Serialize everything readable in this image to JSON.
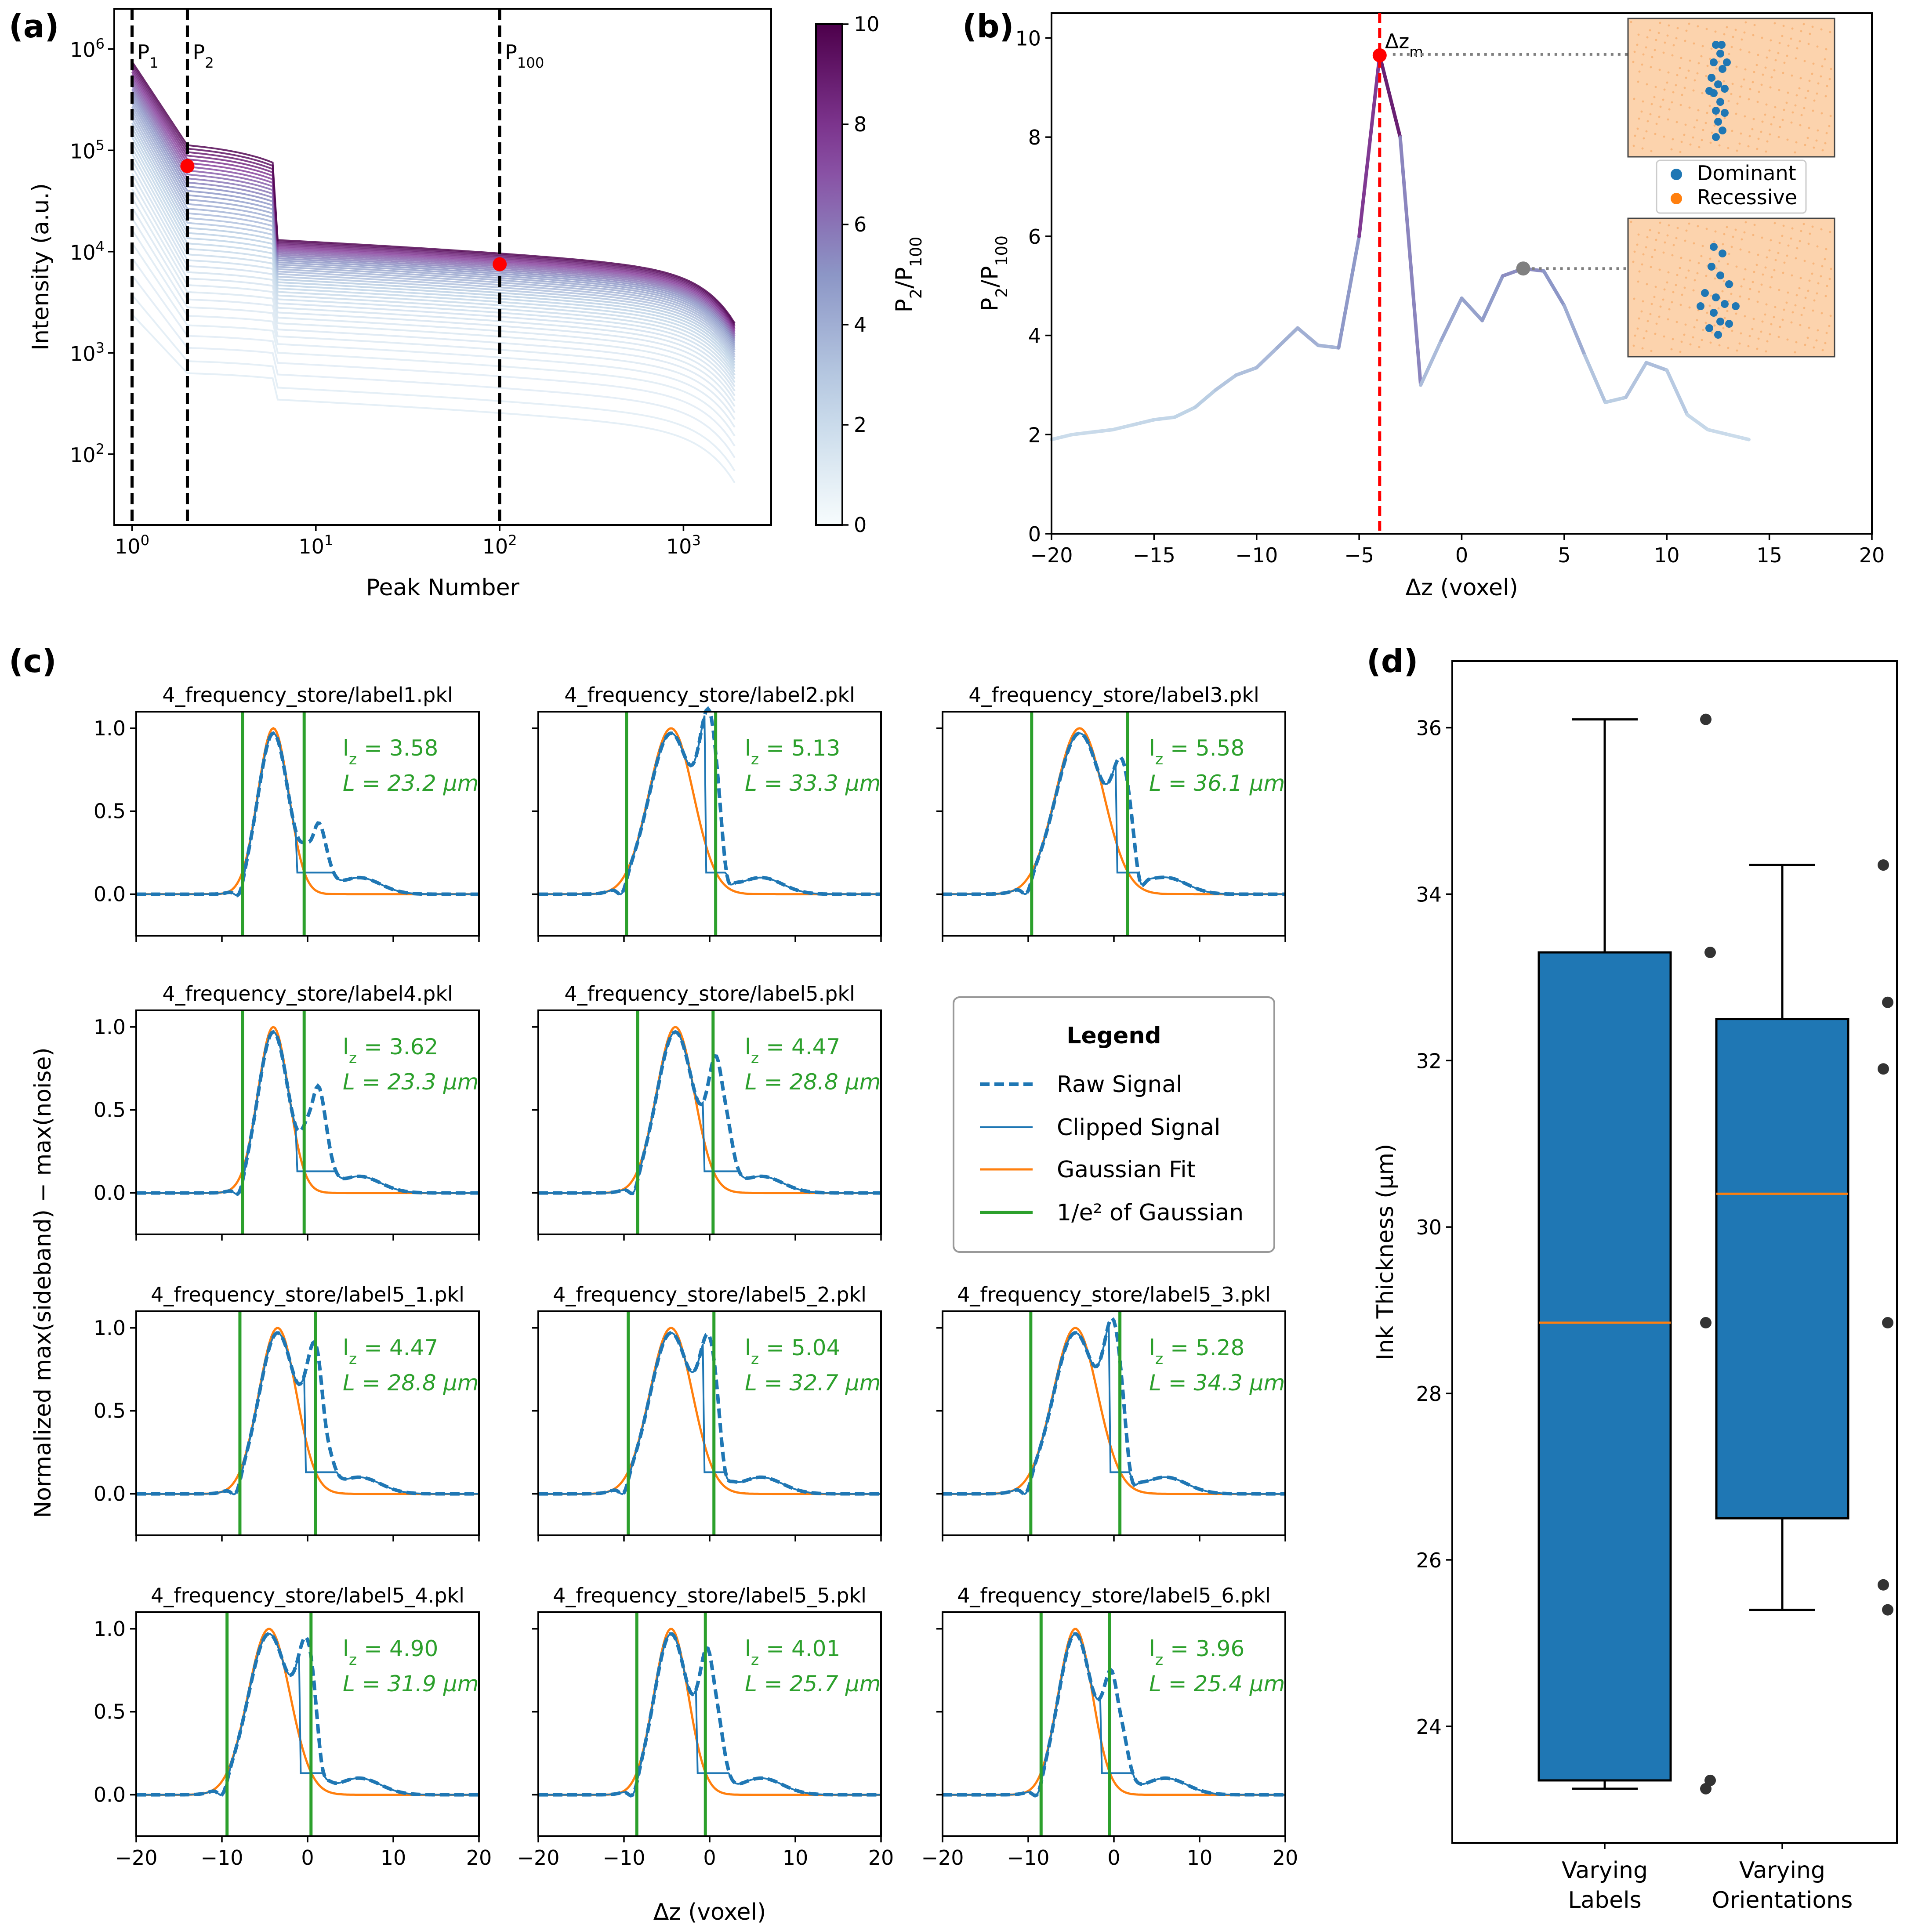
{
  "colors": {
    "blue": "#1f77b4",
    "orange": "#ff7f0e",
    "green": "#2ca02c",
    "red": "#ff0000",
    "dark_purple": "#4d004b",
    "light_blue": "#e0ecf4",
    "grey": "#808080"
  },
  "chart_data": [
    {
      "id": "a",
      "type": "line",
      "panel_label": "(a)",
      "xlabel": "Peak Number",
      "ylabel": "Intensity (a.u.)",
      "xscale": "log",
      "yscale": "log",
      "xlim": [
        0.8,
        3000
      ],
      "ylim": [
        20,
        2500000
      ],
      "xticks": [
        1,
        10,
        100,
        1000
      ],
      "xtick_labels": [
        "10^0",
        "10^1",
        "10^2",
        "10^3"
      ],
      "yticks": [
        100,
        1000,
        10000,
        100000,
        1000000
      ],
      "ytick_labels": [
        "10^2",
        "10^3",
        "10^4",
        "10^5",
        "10^6"
      ],
      "vlines": [
        {
          "x": 1,
          "label": "P_1"
        },
        {
          "x": 2,
          "label": "P_2"
        },
        {
          "x": 100,
          "label": "P_100"
        }
      ],
      "highlight_points": [
        [
          2,
          70000
        ],
        [
          100,
          7500
        ]
      ],
      "colorbar": {
        "label": "P_2/P_100",
        "range": [
          0,
          10
        ],
        "ticks": [
          0,
          2,
          4,
          6,
          8,
          10
        ],
        "tick_labels": [
          "0",
          "2",
          "4",
          "6",
          "8",
          "10"
        ],
        "colormap": "BuPu"
      },
      "series_count": 40,
      "series_ratio_range": [
        1.0,
        9.7
      ]
    },
    {
      "id": "b",
      "type": "line",
      "panel_label": "(b)",
      "xlabel": "Δz (voxel)",
      "ylabel": "P_2/P_100",
      "xlim": [
        -20,
        20
      ],
      "ylim": [
        0,
        10.5
      ],
      "xticks": [
        -20,
        -15,
        -10,
        -5,
        0,
        5,
        10,
        15,
        20
      ],
      "xtick_labels": [
        "−20",
        "−15",
        "−10",
        "−5",
        "0",
        "5",
        "10",
        "15",
        "20"
      ],
      "yticks": [
        0,
        2,
        4,
        6,
        8,
        10
      ],
      "ytick_labels": [
        "0",
        "2",
        "4",
        "6",
        "8",
        "10"
      ],
      "x": [
        -20,
        -19,
        -18,
        -17,
        -16,
        -15,
        -14,
        -13,
        -12,
        -11,
        -10,
        -9,
        -8,
        -7,
        -6,
        -5,
        -4,
        -3,
        -2,
        -1,
        0,
        1,
        2,
        3,
        4,
        5,
        6,
        7,
        8,
        9,
        10,
        11,
        12,
        13,
        14
      ],
      "y": [
        1.9,
        2.0,
        2.05,
        2.1,
        2.2,
        2.3,
        2.35,
        2.55,
        2.9,
        3.2,
        3.35,
        3.75,
        4.15,
        3.8,
        3.75,
        6.0,
        9.65,
        8.0,
        3.0,
        3.9,
        4.75,
        4.3,
        5.2,
        5.35,
        5.3,
        4.6,
        3.6,
        2.65,
        2.75,
        3.45,
        3.3,
        2.4,
        2.1,
        2.0,
        1.9
      ],
      "marker_dz": {
        "x": -4,
        "y": 9.65,
        "label": "Δz_m"
      },
      "marker_grey": {
        "x": 3,
        "y": 5.35
      },
      "inset_legend": [
        "Dominant",
        "Recessive"
      ]
    },
    {
      "id": "c",
      "type": "line",
      "panel_label": "(c)",
      "xlabel": "Δz (voxel)",
      "ylabel": "Normalized max(sideband) − max(noise)",
      "xlim": [
        -20,
        20
      ],
      "ylim": [
        -0.25,
        1.1
      ],
      "xticks": [
        -20,
        -10,
        0,
        10,
        20
      ],
      "xtick_labels": [
        "−20",
        "−10",
        "0",
        "10",
        "20"
      ],
      "yticks": [
        0.0,
        0.5,
        1.0
      ],
      "ytick_labels": [
        "0.0",
        "0.5",
        "1.0"
      ],
      "subplots": [
        {
          "title": "4_frequency_store/label1.pkl",
          "lz": "l_z = 3.58",
          "L": "L = 23.2 μm",
          "mu": -4,
          "sigma": 1.8,
          "second": {
            "x": 1,
            "h": 0.45
          },
          "clip": 0.13
        },
        {
          "title": "4_frequency_store/label2.pkl",
          "lz": "l_z = 5.13",
          "L": "L = 33.3 μm",
          "mu": -4.5,
          "sigma": 2.6,
          "second": {
            "x": 0,
            "h": 0.88
          },
          "clip": 0.13
        },
        {
          "title": "4_frequency_store/label3.pkl",
          "lz": "l_z = 5.58",
          "L": "L = 36.1 μm",
          "mu": -4,
          "sigma": 2.8,
          "second": {
            "x": 1,
            "h": 0.6
          },
          "clip": 0.13
        },
        {
          "title": "4_frequency_store/label4.pkl",
          "lz": "l_z = 3.62",
          "L": "L = 23.3 μm",
          "mu": -4,
          "sigma": 1.8,
          "second": {
            "x": 1,
            "h": 0.67
          },
          "clip": 0.13
        },
        {
          "title": "4_frequency_store/label5.pkl",
          "lz": "l_z = 4.47",
          "L": "L = 28.8 μm",
          "mu": -4,
          "sigma": 2.2,
          "second": {
            "x": 1,
            "h": 0.78
          },
          "clip": 0.13
        },
        {
          "title": "4_frequency_store/label5_1.pkl",
          "lz": "l_z = 4.47",
          "L": "L = 28.8 μm",
          "mu": -3.5,
          "sigma": 2.2,
          "second": {
            "x": 1,
            "h": 0.78
          },
          "clip": 0.13
        },
        {
          "title": "4_frequency_store/label5_2.pkl",
          "lz": "l_z = 5.04",
          "L": "L = 32.7 μm",
          "mu": -4.5,
          "sigma": 2.5,
          "second": {
            "x": 0,
            "h": 0.75
          },
          "clip": 0.13
        },
        {
          "title": "4_frequency_store/label5_3.pkl",
          "lz": "l_z = 5.28",
          "L": "L = 34.3 μm",
          "mu": -4.5,
          "sigma": 2.6,
          "second": {
            "x": 0,
            "h": 0.82
          },
          "clip": 0.13
        },
        {
          "title": "4_frequency_store/label5_4.pkl",
          "lz": "l_z = 4.90",
          "L": "L = 31.9 μm",
          "mu": -4.5,
          "sigma": 2.45,
          "second": {
            "x": 0,
            "h": 0.75
          },
          "clip": 0.13
        },
        {
          "title": "4_frequency_store/label5_5.pkl",
          "lz": "l_z = 4.01",
          "L": "L = 25.7 μm",
          "mu": -4.5,
          "sigma": 2.0,
          "second": {
            "x": 0,
            "h": 0.84
          },
          "clip": 0.13
        },
        {
          "title": "4_frequency_store/label5_6.pkl",
          "lz": "l_z = 3.96",
          "L": "L = 25.4 μm",
          "mu": -4.5,
          "sigma": 2.0,
          "second": {
            "x": 0,
            "h": 0.7
          },
          "clip": 0.13
        }
      ],
      "legend": {
        "title": "Legend",
        "entries": [
          "Raw Signal",
          "Clipped Signal",
          "Gaussian Fit",
          "1/e² of Gaussian"
        ]
      }
    },
    {
      "id": "d",
      "type": "box",
      "panel_label": "(d)",
      "ylabel": "Ink Thickness (μm)",
      "ylim": [
        22.6,
        36.8
      ],
      "yticks": [
        24,
        26,
        28,
        30,
        32,
        34,
        36
      ],
      "ytick_labels": [
        "24",
        "26",
        "28",
        "30",
        "32",
        "34",
        "36"
      ],
      "categories": [
        "Varying Labels",
        "Varying Orientations"
      ],
      "boxes": [
        {
          "q1": 23.35,
          "median": 28.85,
          "q3": 33.3,
          "whisker_low": 23.25,
          "whisker_high": 36.1,
          "points": [
            36.1,
            33.3,
            28.85,
            23.35,
            23.25
          ]
        },
        {
          "q1": 26.5,
          "median": 30.4,
          "q3": 32.5,
          "whisker_low": 25.4,
          "whisker_high": 34.35,
          "points": [
            34.35,
            32.7,
            31.9,
            28.85,
            25.7,
            25.4
          ]
        }
      ]
    }
  ]
}
